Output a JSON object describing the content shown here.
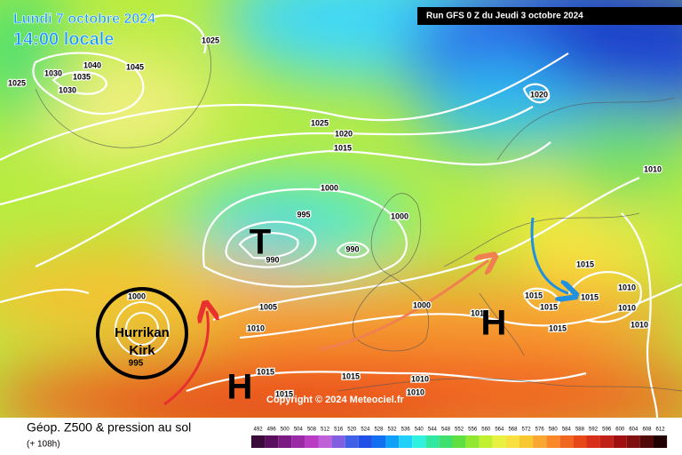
{
  "header": {
    "date": "Lundi 7 octobre 2024",
    "time": "14:00 locale",
    "run": "Run GFS 0 Z du Jeudi 3 octobre 2024"
  },
  "isobar_labels": [
    "1025",
    "1030",
    "1040",
    "1045",
    "1025",
    "1035",
    "1030",
    "1020",
    "1025",
    "1020",
    "1015",
    "1010",
    "1000",
    "995",
    "1000",
    "990",
    "990",
    "1015",
    "1010",
    "1015",
    "1015",
    "1005",
    "1000",
    "1015",
    "1010",
    "1015",
    "1010",
    "1010",
    "1015",
    "1015",
    "1015",
    "1010",
    "1010",
    "1015",
    "1000"
  ],
  "pressure_centers": [
    "T",
    "H",
    "H"
  ],
  "hurricane": {
    "line1": "Hurrikan",
    "line2": "Kirk",
    "pressure": "995"
  },
  "copyright": "Copyright © 2024 Meteociel.fr",
  "footer": {
    "title": "Géop. Z500 & pression au sol",
    "lead": "(+ 108h)"
  },
  "legend": {
    "labels": [
      "492",
      "496",
      "500",
      "504",
      "508",
      "512",
      "516",
      "520",
      "524",
      "528",
      "532",
      "536",
      "540",
      "544",
      "548",
      "552",
      "556",
      "560",
      "564",
      "568",
      "572",
      "576",
      "580",
      "584",
      "588",
      "592",
      "596",
      "600",
      "604",
      "608",
      "612"
    ],
    "colors": [
      "#3a0a3a",
      "#5a0f5e",
      "#7a1a82",
      "#9a2aa6",
      "#b83cc4",
      "#c060d8",
      "#8060e0",
      "#4060e8",
      "#2050e8",
      "#1070f0",
      "#10a0f8",
      "#20d0f8",
      "#30f0e0",
      "#30e8a0",
      "#40e070",
      "#60e040",
      "#90e830",
      "#c0f030",
      "#e8f040",
      "#f8e040",
      "#f8c830",
      "#f8a830",
      "#f88828",
      "#f06820",
      "#e84818",
      "#d83018",
      "#c02018",
      "#a01010",
      "#801010",
      "#500808",
      "#200000"
    ]
  }
}
